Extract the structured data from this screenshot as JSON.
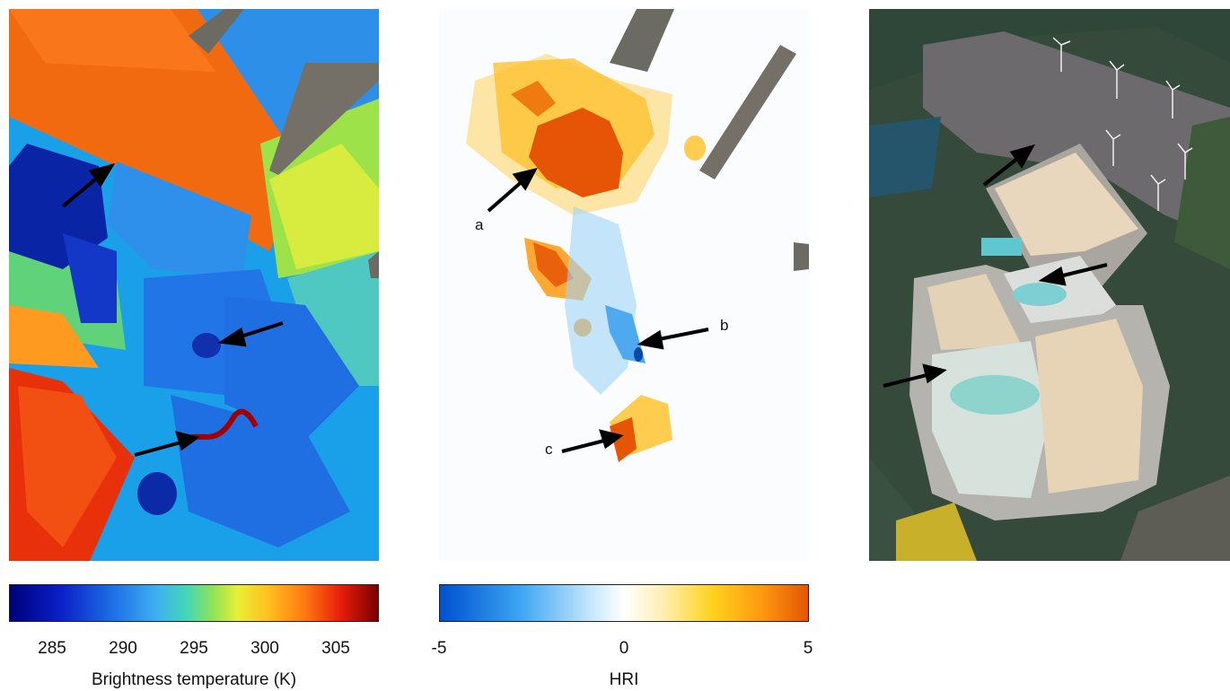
{
  "colorbars": {
    "temperature": {
      "ticks": [
        "285",
        "290",
        "295",
        "300",
        "305"
      ],
      "label": "Brightness temperature (K)",
      "colors": [
        "#00007a",
        "#1e6fe6",
        "#45d6b5",
        "#e9ef35",
        "#ff7a10",
        "#7a0000"
      ]
    },
    "hri": {
      "ticks": [
        "-5",
        "0",
        "5"
      ],
      "label": "HRI",
      "colors": [
        "#0050d0",
        "#ffffff",
        "#e55505"
      ]
    }
  },
  "annotations": {
    "a": "a",
    "b": "b",
    "c": "c"
  }
}
